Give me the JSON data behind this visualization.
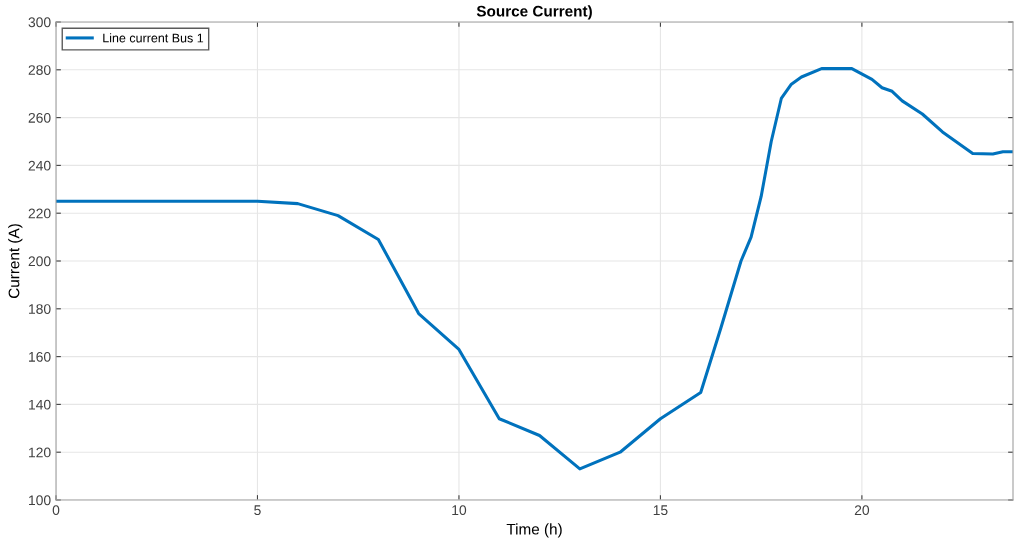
{
  "chart_data": {
    "type": "line",
    "title": "Source Current)",
    "xlabel": "Time (h)",
    "ylabel": "Current (A)",
    "series": [
      {
        "name": "Line current Bus 1",
        "color": "#0072bd",
        "x": [
          0,
          1,
          2,
          3,
          4,
          5,
          6,
          7,
          8,
          9,
          10,
          11,
          12,
          13,
          14,
          15,
          16,
          16.5,
          17,
          17.25,
          17.5,
          17.75,
          18,
          18.25,
          18.5,
          19,
          19.75,
          20.25,
          20.5,
          20.75,
          21,
          21.5,
          22,
          22.75,
          23.25,
          23.5,
          23.75
        ],
        "values": [
          225,
          225,
          225,
          225,
          225,
          225,
          224,
          219,
          209,
          178,
          163,
          134,
          127,
          113,
          120,
          134,
          145,
          172,
          200,
          210,
          227,
          250,
          268,
          274,
          277,
          280.5,
          280.5,
          276,
          272.5,
          271,
          267,
          261.5,
          254,
          245,
          244.8,
          245.7,
          245.7
        ]
      }
    ],
    "xlim": [
      0,
      23.75
    ],
    "xticks": [
      0,
      5,
      10,
      15,
      20
    ],
    "ylim": [
      100,
      300
    ],
    "yticks": [
      100,
      120,
      140,
      160,
      180,
      200,
      220,
      240,
      260,
      280,
      300
    ],
    "grid": true,
    "legend": "top left",
    "marker": "none",
    "line_style": "solid"
  }
}
